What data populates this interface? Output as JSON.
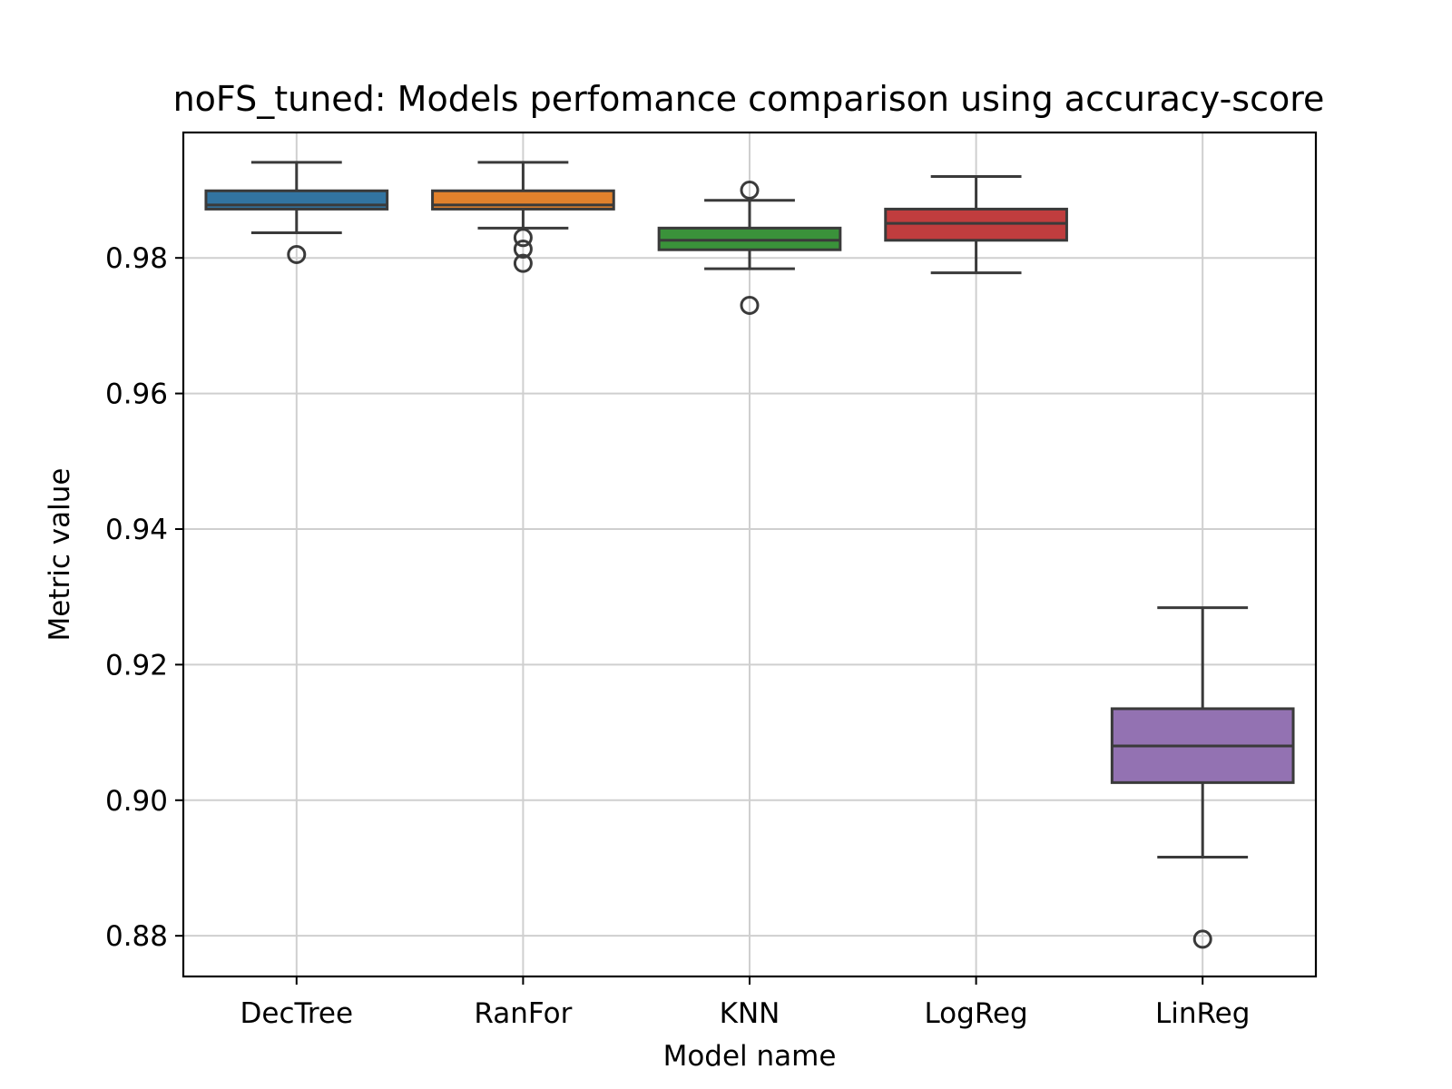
{
  "chart_data": {
    "type": "box",
    "title": "noFS_tuned: Models perfomance comparison using accuracy-score",
    "xlabel": "Model name",
    "ylabel": "Metric value",
    "ylim": [
      0.874,
      0.9985
    ],
    "yticks": [
      "0.88",
      "0.90",
      "0.92",
      "0.94",
      "0.96",
      "0.98"
    ],
    "grid": true,
    "categories": [
      "DecTree",
      "RanFor",
      "KNN",
      "LogReg",
      "LinReg"
    ],
    "colors": [
      "#3274a1",
      "#e1812c",
      "#3a923a",
      "#c03d3e",
      "#9372b2"
    ],
    "boxes": [
      {
        "name": "DecTree",
        "whislo": 0.9837,
        "q1": 0.9872,
        "med": 0.9878,
        "q3": 0.9899,
        "whishi": 0.9941,
        "fliers": [
          0.9805
        ]
      },
      {
        "name": "RanFor",
        "whislo": 0.9844,
        "q1": 0.9872,
        "med": 0.9878,
        "q3": 0.9899,
        "whishi": 0.9941,
        "fliers": [
          0.983,
          0.9813,
          0.9792
        ]
      },
      {
        "name": "KNN",
        "whislo": 0.9784,
        "q1": 0.9812,
        "med": 0.9826,
        "q3": 0.9844,
        "whishi": 0.9885,
        "fliers": [
          0.99,
          0.973
        ]
      },
      {
        "name": "LogReg",
        "whislo": 0.9778,
        "q1": 0.9826,
        "med": 0.9851,
        "q3": 0.9872,
        "whishi": 0.992,
        "fliers": []
      },
      {
        "name": "LinReg",
        "whislo": 0.8916,
        "q1": 0.9026,
        "med": 0.908,
        "q3": 0.9135,
        "whishi": 0.9284,
        "fliers": [
          0.8795
        ]
      }
    ]
  }
}
